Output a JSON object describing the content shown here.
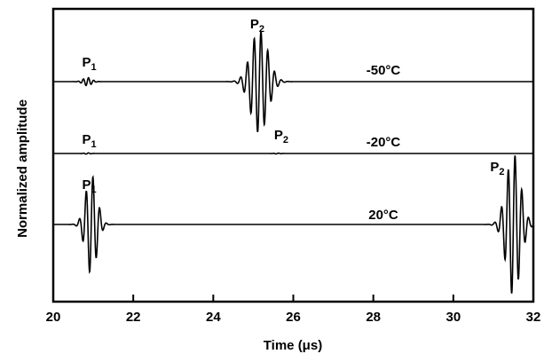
{
  "chart_data": {
    "type": "line",
    "title": "",
    "xlabel": "Time (μs)",
    "ylabel": "Normalized amplitude",
    "xlim": [
      20,
      32
    ],
    "xticks": [
      20,
      22,
      24,
      26,
      28,
      30,
      32
    ],
    "xtick_labels": [
      "20",
      "22",
      "24",
      "26",
      "28",
      "30",
      "32"
    ],
    "grid": false,
    "series": [
      {
        "name": "-50°C",
        "annotations": [
          {
            "letter": "P",
            "sub": "1",
            "x": 20.9
          },
          {
            "letter": "P",
            "sub": "2",
            "x": 25.1
          }
        ],
        "pulses": [
          {
            "center": 20.85,
            "amplitude": 0.08,
            "width": 0.15,
            "period": 0.13
          },
          {
            "center": 25.15,
            "amplitude": 1.0,
            "width": 0.3,
            "period": 0.17
          }
        ]
      },
      {
        "name": "-20°C",
        "annotations": [
          {
            "letter": "P",
            "sub": "1",
            "x": 20.9
          },
          {
            "letter": "P",
            "sub": "2",
            "x": 25.7
          }
        ],
        "pulses": [
          {
            "center": 20.85,
            "amplitude": 0.03,
            "width": 0.1,
            "period": 0.13
          },
          {
            "center": 25.6,
            "amplitude": 0.02,
            "width": 0.1,
            "period": 0.13
          }
        ]
      },
      {
        "name": "20°C",
        "annotations": [
          {
            "letter": "P",
            "sub": "1",
            "x": 20.9
          },
          {
            "letter": "P",
            "sub": "2",
            "x": 31.1
          }
        ],
        "pulses": [
          {
            "center": 20.95,
            "amplitude": 0.7,
            "width": 0.2,
            "period": 0.17
          },
          {
            "center": 31.5,
            "amplitude": 1.0,
            "width": 0.25,
            "period": 0.17
          }
        ]
      }
    ]
  }
}
